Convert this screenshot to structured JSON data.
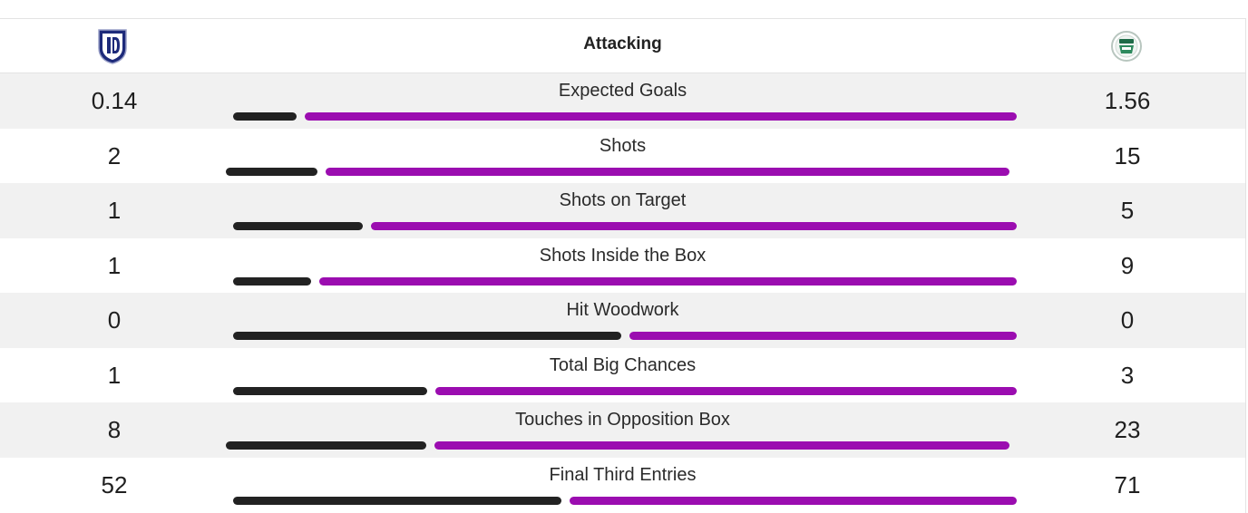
{
  "header": {
    "title": "Attacking"
  },
  "teams": {
    "home_icon": "home-club-crest-icon",
    "away_icon": "away-club-crest-icon"
  },
  "colors": {
    "home_bar": "#222222",
    "away_bar": "#9b0db0"
  },
  "stats": [
    {
      "label": "Expected Goals",
      "home": "0.14",
      "away": "1.56",
      "home_share": 0.082
    },
    {
      "label": "Shots",
      "home": "2",
      "away": "15",
      "home_share": 0.118
    },
    {
      "label": "Shots on Target",
      "home": "1",
      "away": "5",
      "home_share": 0.167
    },
    {
      "label": "Shots Inside the Box",
      "home": "1",
      "away": "9",
      "home_share": 0.1
    },
    {
      "label": "Hit Woodwork",
      "home": "0",
      "away": "0",
      "home_share": 0.5
    },
    {
      "label": "Total Big Chances",
      "home": "1",
      "away": "3",
      "home_share": 0.25
    },
    {
      "label": "Touches in Opposition Box",
      "home": "8",
      "away": "23",
      "home_share": 0.258
    },
    {
      "label": "Final Third Entries",
      "home": "52",
      "away": "71",
      "home_share": 0.423
    }
  ]
}
